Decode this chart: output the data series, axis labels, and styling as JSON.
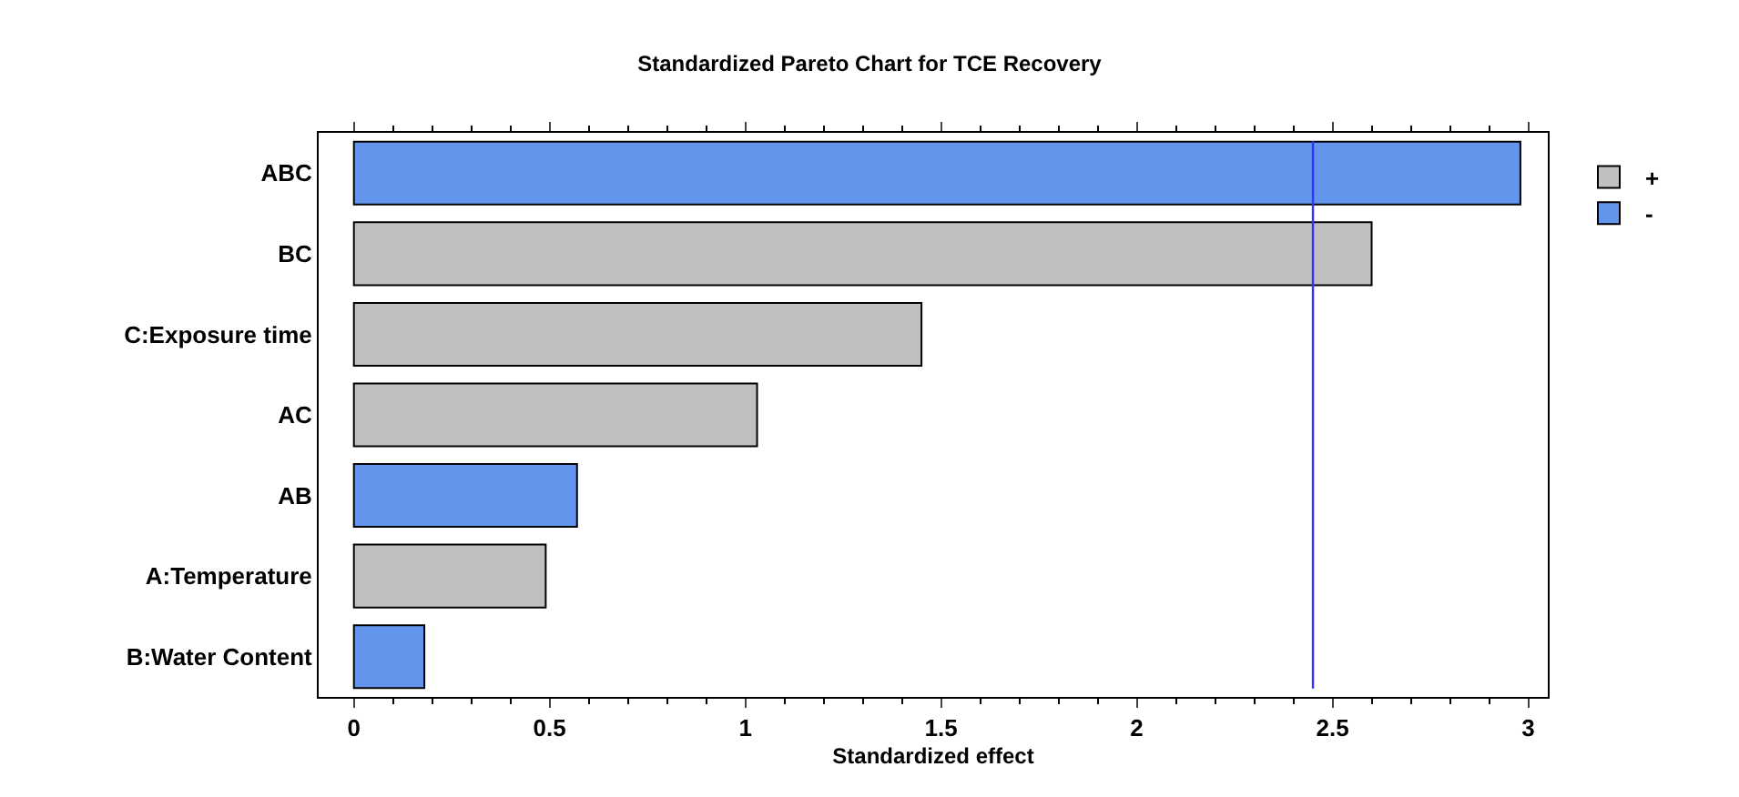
{
  "chart_data": {
    "type": "bar",
    "orientation": "horizontal",
    "title": "Standardized Pareto Chart for TCE Recovery",
    "xlabel": "Standardized effect",
    "categories": [
      "ABC",
      "BC",
      "C:Exposure time",
      "AC",
      "AB",
      "A:Temperature",
      "B:Water Content"
    ],
    "series": [
      {
        "name": "+",
        "color": "#c0c0c0",
        "values": [
          null,
          2.6,
          1.45,
          1.03,
          null,
          0.49,
          null
        ]
      },
      {
        "name": "-",
        "color": "#6495ed",
        "values": [
          2.98,
          null,
          null,
          null,
          0.57,
          null,
          0.18
        ]
      }
    ],
    "xlim": [
      -0.09,
      3.05
    ],
    "xticks": [
      0,
      0.5,
      1,
      1.5,
      2,
      2.5,
      3
    ],
    "ref_lines": [
      {
        "axis": "x",
        "value": 2.45,
        "color": "#3333ff"
      }
    ],
    "grid": false,
    "legend": "top right"
  }
}
